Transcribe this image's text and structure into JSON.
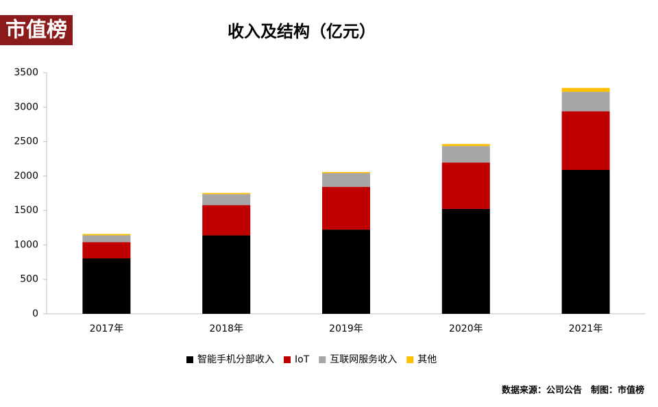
{
  "brand": "市值榜",
  "source": "数据来源：公司公告　制图：市值榜",
  "chart_data": {
    "type": "stacked_bar",
    "title": "收入及结构（亿元）",
    "categories": [
      "2017年",
      "2018年",
      "2019年",
      "2020年",
      "2021年"
    ],
    "series": [
      {
        "name": "智能手机分部收入",
        "color": "#000000",
        "values": [
          805,
          1138,
          1222,
          1522,
          2088
        ]
      },
      {
        "name": "IoT",
        "color": "#c00000",
        "values": [
          235,
          438,
          621,
          674,
          850
        ]
      },
      {
        "name": "互联网服务收入",
        "color": "#a6a6a6",
        "values": [
          99,
          160,
          199,
          238,
          283
        ]
      },
      {
        "name": "其他",
        "color": "#ffc000",
        "values": [
          20,
          18,
          16,
          30,
          57
        ]
      }
    ],
    "ylim": [
      0,
      3500
    ],
    "yticks": [
      0,
      500,
      1000,
      1500,
      2000,
      2500,
      3000,
      3500
    ],
    "grid": false,
    "legend": "bottom"
  }
}
